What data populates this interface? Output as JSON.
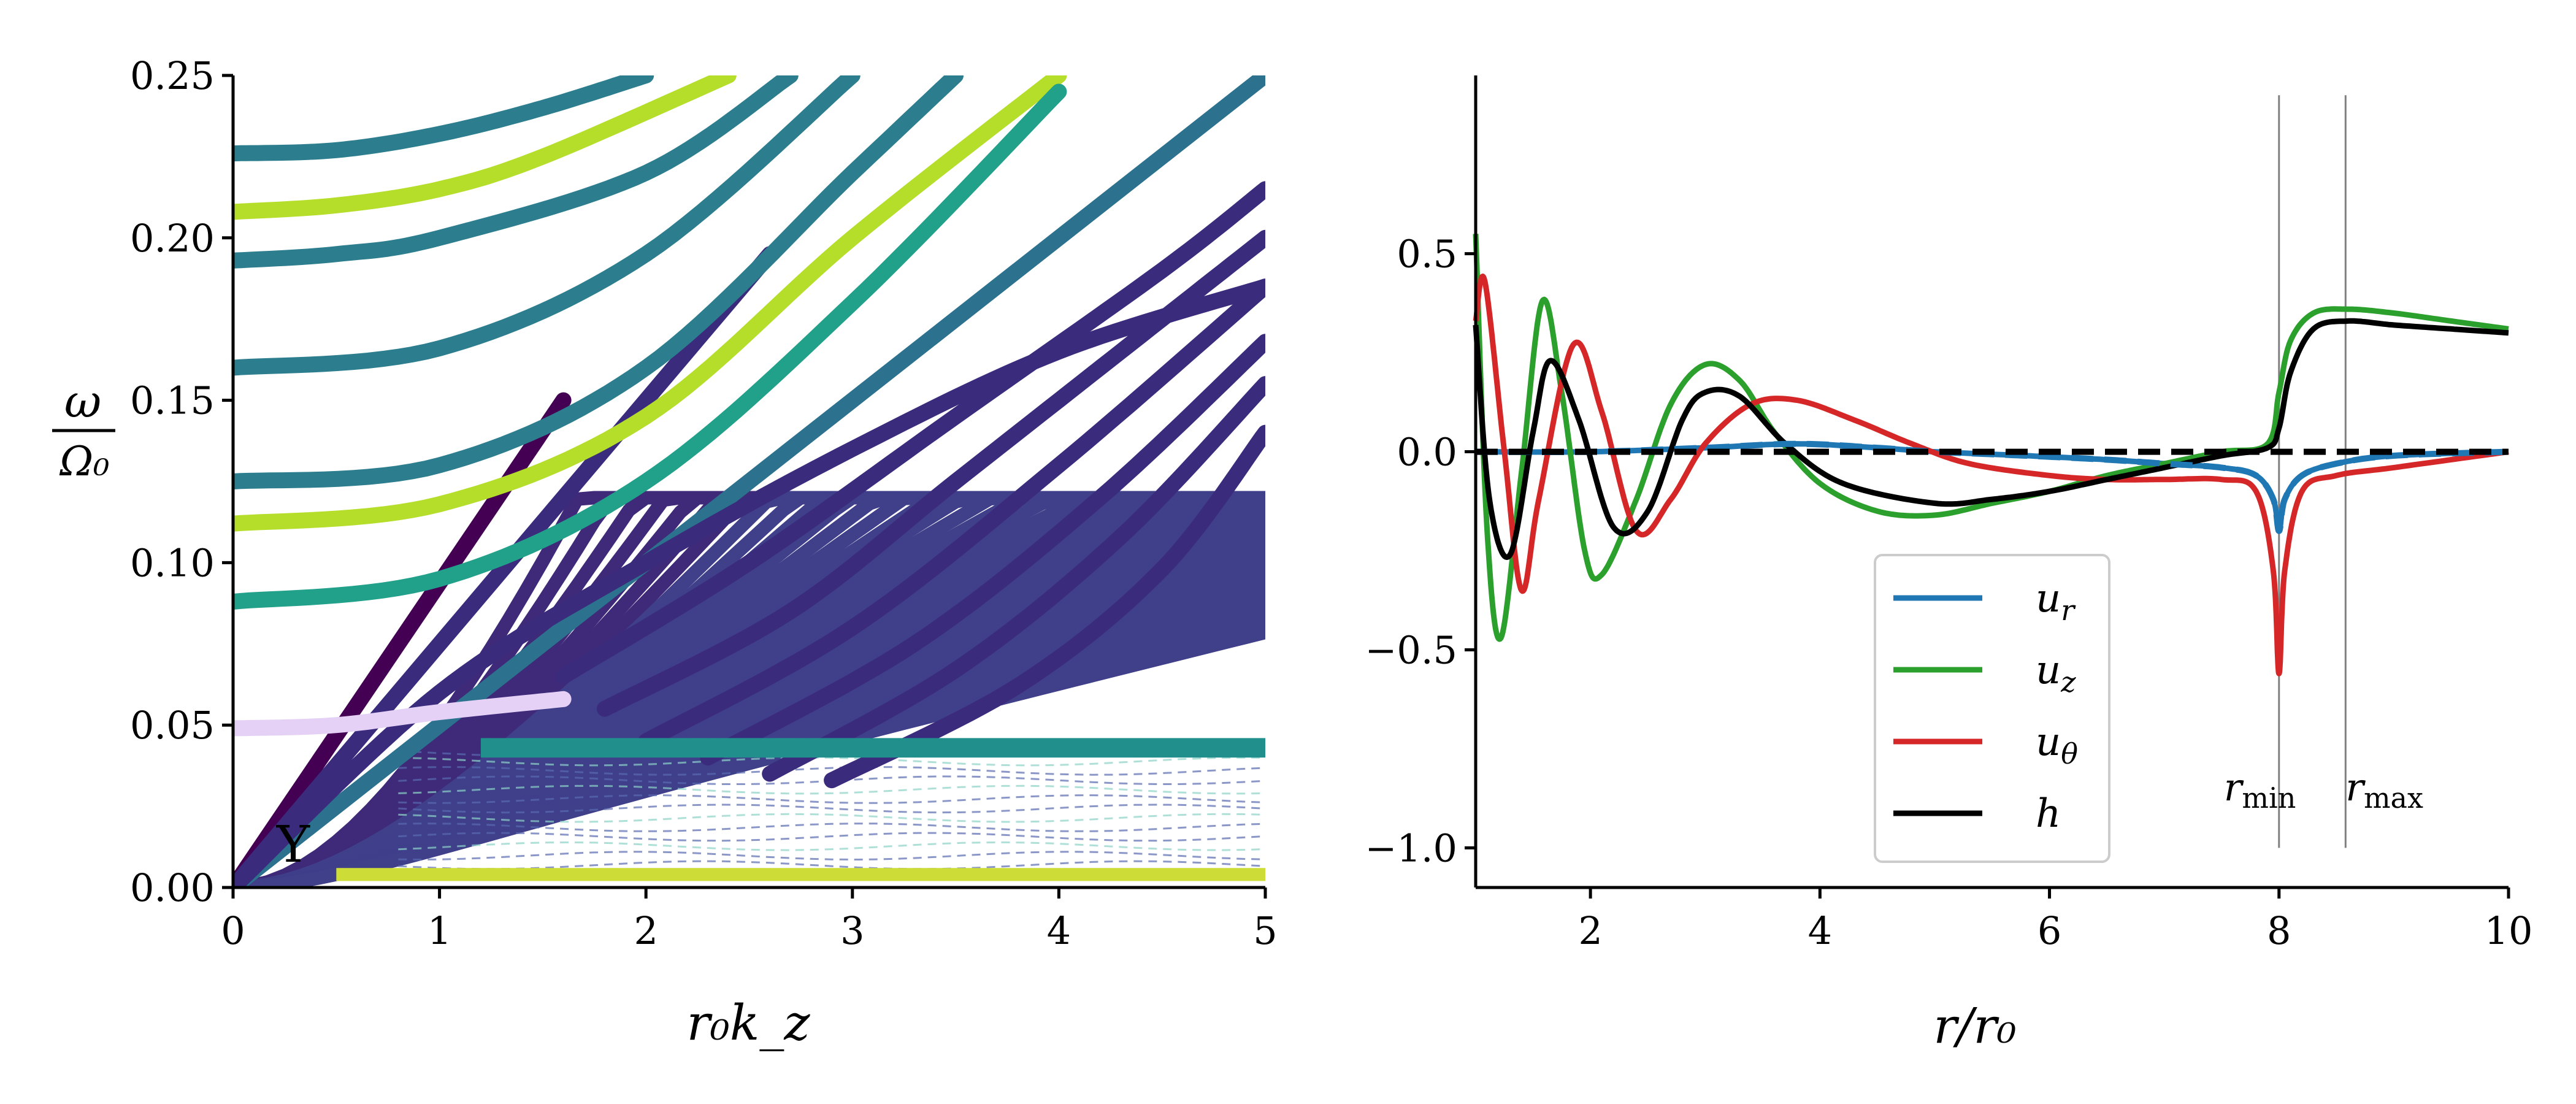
{
  "chart_data": [
    {
      "type": "scatter",
      "title": "",
      "xlabel": "r₀k_z",
      "ylabel_num": "ω",
      "ylabel_den": "Ω₀",
      "xlim": [
        0,
        5
      ],
      "ylim": [
        0,
        0.25
      ],
      "xticks": [
        0,
        1,
        2,
        3,
        4,
        5
      ],
      "xtick_labels": [
        "0",
        "1",
        "2",
        "3",
        "4",
        "5"
      ],
      "yticks": [
        0,
        0.05,
        0.1,
        0.15,
        0.2,
        0.25
      ],
      "ytick_labels": [
        "0.00",
        "0.05",
        "0.10",
        "0.15",
        "0.20",
        "0.25"
      ],
      "grid": false,
      "colormap": [
        "#440154",
        "#472a7a",
        "#3b518b",
        "#2c718e",
        "#21908d",
        "#27ad81",
        "#5cc863",
        "#aadc32",
        "#fde725"
      ],
      "color_note": "viridis",
      "marker_annotation": "Y",
      "series": [
        {
          "kind": "line",
          "x": [
            0,
            1.6
          ],
          "y": [
            0,
            0.15
          ],
          "color": "#440154"
        },
        {
          "kind": "line",
          "x": [
            0,
            2.6
          ],
          "y": [
            0,
            0.195
          ],
          "color": "#3b2b7d"
        },
        {
          "kind": "line",
          "x": [
            0,
            5
          ],
          "y": [
            0,
            0.25
          ],
          "color": "#2c718e"
        },
        {
          "kind": "curve",
          "x": [
            0,
            1.0,
            2.0,
            3.0,
            4.0,
            5.0
          ],
          "y": [
            0,
            0.06,
            0.1,
            0.135,
            0.165,
            0.185
          ],
          "color": "#3b2b7d"
        },
        {
          "kind": "curve",
          "x": [
            0,
            0.5,
            1.0,
            1.5,
            2.0
          ],
          "y": [
            0.226,
            0.227,
            0.232,
            0.24,
            0.25
          ],
          "color": "#2c7e8e"
        },
        {
          "kind": "curve",
          "x": [
            0,
            0.5,
            1.0,
            1.5,
            2.4
          ],
          "y": [
            0.208,
            0.21,
            0.215,
            0.225,
            0.25
          ],
          "color": "#b5de2b"
        },
        {
          "kind": "curve",
          "x": [
            0,
            0.5,
            1.0,
            2.0,
            2.7
          ],
          "y": [
            0.193,
            0.195,
            0.2,
            0.22,
            0.25
          ],
          "color": "#2c7e8e"
        },
        {
          "kind": "curve",
          "x": [
            0,
            1.0,
            2.0,
            3.0
          ],
          "y": [
            0.16,
            0.166,
            0.195,
            0.25
          ],
          "color": "#2c7e8e"
        },
        {
          "kind": "curve",
          "x": [
            0,
            1.0,
            2.0,
            3.0,
            3.5
          ],
          "y": [
            0.125,
            0.13,
            0.16,
            0.22,
            0.25
          ],
          "color": "#2c7e8e"
        },
        {
          "kind": "curve",
          "x": [
            0,
            1.0,
            2.0,
            3.0,
            4.0
          ],
          "y": [
            0.112,
            0.118,
            0.145,
            0.2,
            0.25
          ],
          "color": "#b5de2b"
        },
        {
          "kind": "curve",
          "x": [
            0,
            1.0,
            2.0,
            3.0,
            4.0
          ],
          "y": [
            0.088,
            0.095,
            0.125,
            0.18,
            0.245
          ],
          "color": "#21a08a"
        },
        {
          "kind": "curve",
          "x": [
            0,
            0.5,
            1.0,
            1.6
          ],
          "y": [
            0.049,
            0.05,
            0.054,
            0.058
          ],
          "color": "#e4d1f5"
        },
        {
          "kind": "curve",
          "x": [
            1.6,
            2.5,
            3.5,
            4.5,
            5.0
          ],
          "y": [
            0.065,
            0.1,
            0.145,
            0.19,
            0.215
          ],
          "color": "#3b2b7d"
        },
        {
          "kind": "curve",
          "x": [
            1.8,
            2.7,
            3.5,
            4.3,
            5.0
          ],
          "y": [
            0.055,
            0.085,
            0.125,
            0.165,
            0.2
          ],
          "color": "#3b2b7d"
        },
        {
          "kind": "curve",
          "x": [
            2.0,
            3.0,
            4.0,
            5.0
          ],
          "y": [
            0.045,
            0.08,
            0.13,
            0.185
          ],
          "color": "#3b2b7d"
        },
        {
          "kind": "curve",
          "x": [
            2.3,
            3.3,
            4.2,
            5.0
          ],
          "y": [
            0.04,
            0.075,
            0.12,
            0.168
          ],
          "color": "#3b2b7d"
        },
        {
          "kind": "curve",
          "x": [
            2.6,
            3.5,
            4.3,
            5.0
          ],
          "y": [
            0.035,
            0.067,
            0.108,
            0.155
          ],
          "color": "#3b2b7d"
        },
        {
          "kind": "curve",
          "x": [
            2.9,
            3.8,
            4.5,
            5.0
          ],
          "y": [
            0.033,
            0.062,
            0.098,
            0.14
          ],
          "color": "#3b2b7d"
        },
        {
          "kind": "band",
          "x": [
            0.5,
            5.0
          ],
          "y_low": 0.002,
          "y_high": 0.006,
          "color": "#cddc37"
        },
        {
          "kind": "band",
          "x": [
            1.2,
            5.0
          ],
          "y_low": 0.04,
          "y_high": 0.046,
          "color": "#21908d"
        }
      ]
    },
    {
      "type": "line",
      "title": "",
      "xlabel": "r/r₀",
      "ylabel": "",
      "xlim": [
        1,
        10
      ],
      "ylim": [
        -1.1,
        0.95
      ],
      "xticks": [
        2,
        4,
        6,
        8,
        10
      ],
      "xtick_labels": [
        "2",
        "4",
        "6",
        "8",
        "10"
      ],
      "yticks": [
        -1.0,
        -0.5,
        0.0,
        0.5
      ],
      "ytick_labels": [
        "−1.0",
        "−0.5",
        "0.0",
        "0.5"
      ],
      "grid": false,
      "vlines": [
        {
          "x": 8.0,
          "label_main": "r",
          "label_sub": "min"
        },
        {
          "x": 8.58,
          "label_main": "r",
          "label_sub": "max"
        }
      ],
      "legend_position": "lower-center",
      "series": [
        {
          "name": "u_r",
          "label_main": "u",
          "label_sub": "r",
          "color": "#1f77b4",
          "x": [
            1.0,
            2.0,
            3.0,
            3.8,
            4.5,
            5.0,
            5.8,
            6.5,
            7.0,
            7.5,
            7.8,
            7.95,
            8.0,
            8.05,
            8.2,
            8.5,
            9.0,
            10.0
          ],
          "y": [
            0.0,
            0.0,
            0.01,
            0.02,
            0.01,
            0.0,
            -0.01,
            -0.02,
            -0.03,
            -0.04,
            -0.06,
            -0.12,
            -0.2,
            -0.12,
            -0.06,
            -0.03,
            -0.01,
            0.0
          ]
        },
        {
          "name": "u_z",
          "label_main": "u",
          "label_sub": "z",
          "color": "#2ca02c",
          "x": [
            1.0,
            1.1,
            1.22,
            1.4,
            1.58,
            1.75,
            1.95,
            2.1,
            2.4,
            2.7,
            3.0,
            3.3,
            3.6,
            4.0,
            4.5,
            5.0,
            5.5,
            6.0,
            6.5,
            7.0,
            7.5,
            7.9,
            8.0,
            8.1,
            8.3,
            8.6,
            9.0,
            9.5,
            10.0
          ],
          "y": [
            0.55,
            -0.2,
            -0.47,
            -0.05,
            0.38,
            0.15,
            -0.25,
            -0.31,
            -0.12,
            0.12,
            0.22,
            0.18,
            0.05,
            -0.08,
            -0.15,
            -0.16,
            -0.13,
            -0.1,
            -0.06,
            -0.03,
            0.0,
            0.02,
            0.15,
            0.28,
            0.35,
            0.36,
            0.35,
            0.33,
            0.31
          ]
        },
        {
          "name": "u_theta",
          "label_main": "u",
          "label_sub": "θ",
          "color": "#d62728",
          "x": [
            1.0,
            1.08,
            1.25,
            1.4,
            1.55,
            1.85,
            2.1,
            2.4,
            2.7,
            3.0,
            3.4,
            3.8,
            4.3,
            4.8,
            5.3,
            6.0,
            6.5,
            7.0,
            7.5,
            7.8,
            7.95,
            8.0,
            8.05,
            8.2,
            8.5,
            9.0,
            10.0
          ],
          "y": [
            0.33,
            0.43,
            0.0,
            -0.35,
            -0.12,
            0.27,
            0.1,
            -0.2,
            -0.12,
            0.02,
            0.12,
            0.13,
            0.08,
            0.02,
            -0.03,
            -0.06,
            -0.07,
            -0.07,
            -0.07,
            -0.1,
            -0.3,
            -0.56,
            -0.3,
            -0.1,
            -0.06,
            -0.04,
            0.0
          ]
        },
        {
          "name": "h",
          "label_main": "h",
          "label_sub": "",
          "color": "#000000",
          "x": [
            1.0,
            1.12,
            1.3,
            1.5,
            1.65,
            1.9,
            2.2,
            2.5,
            2.8,
            3.0,
            3.3,
            3.7,
            4.2,
            5.0,
            5.5,
            6.0,
            6.5,
            7.0,
            7.5,
            7.9,
            8.0,
            8.1,
            8.3,
            8.6,
            9.0,
            9.5,
            10.0
          ],
          "y": [
            0.32,
            -0.12,
            -0.26,
            0.05,
            0.23,
            0.08,
            -0.19,
            -0.15,
            0.08,
            0.15,
            0.14,
            0.02,
            -0.08,
            -0.13,
            -0.12,
            -0.1,
            -0.07,
            -0.04,
            -0.01,
            0.01,
            0.06,
            0.2,
            0.31,
            0.33,
            0.32,
            0.31,
            0.3
          ]
        },
        {
          "name": "dashed-ur",
          "kind": "dashed",
          "color": "#1f77b4",
          "x": [
            1.0,
            2.0,
            3.0,
            3.8,
            4.5,
            5.0,
            5.8,
            6.5,
            7.0,
            7.5,
            7.8,
            7.95,
            8.0,
            8.05,
            8.2,
            8.5,
            9.0,
            10.0
          ],
          "y": [
            0.0,
            0.0,
            0.01,
            0.02,
            0.01,
            0.0,
            -0.01,
            -0.02,
            -0.03,
            -0.04,
            -0.06,
            -0.12,
            -0.2,
            -0.12,
            -0.06,
            -0.03,
            -0.01,
            0.0
          ]
        },
        {
          "name": "dashed-zero",
          "kind": "dashed",
          "color": "#000000",
          "x": [
            1.0,
            10.0
          ],
          "y": [
            0.0,
            0.0
          ]
        }
      ]
    }
  ]
}
